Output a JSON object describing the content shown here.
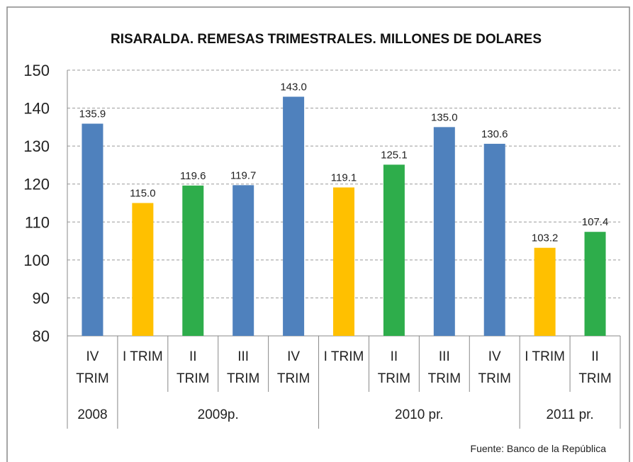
{
  "chart_data": {
    "type": "bar",
    "title": "RISARALDA. REMESAS TRIMESTRALES. MILLONES DE DOLARES",
    "categories": [
      "IV TRIM",
      "I TRIM",
      "II TRIM",
      "III TRIM",
      "IV TRIM",
      "I TRIM",
      "II TRIM",
      "III TRIM",
      "IV TRIM",
      "I TRIM",
      "II TRIM"
    ],
    "groups": [
      {
        "label": "2008",
        "span": 1
      },
      {
        "label": "2009p.",
        "span": 4
      },
      {
        "label": "2010 pr.",
        "span": 4
      },
      {
        "label": "2011 pr.",
        "span": 2
      }
    ],
    "values": [
      135.9,
      115,
      119.6,
      119.7,
      143,
      119.1,
      125.1,
      135,
      130.6,
      103.2,
      107.4
    ],
    "value_labels": [
      "135.9",
      "115.0",
      "119.6",
      "119.7",
      "143.0",
      "119.1",
      "125.1",
      "135.0",
      "130.6",
      "103.2",
      "107.4"
    ],
    "colors": [
      "#4f81bd",
      "#ffc000",
      "#2ead4b",
      "#4f81bd",
      "#4f81bd",
      "#ffc000",
      "#2ead4b",
      "#4f81bd",
      "#4f81bd",
      "#ffc000",
      "#2ead4b"
    ],
    "ylim": [
      80,
      150
    ],
    "yticks": [
      80,
      90,
      100,
      110,
      120,
      130,
      140,
      150
    ],
    "grid": true,
    "source": "Fuente:  Banco de la República"
  }
}
